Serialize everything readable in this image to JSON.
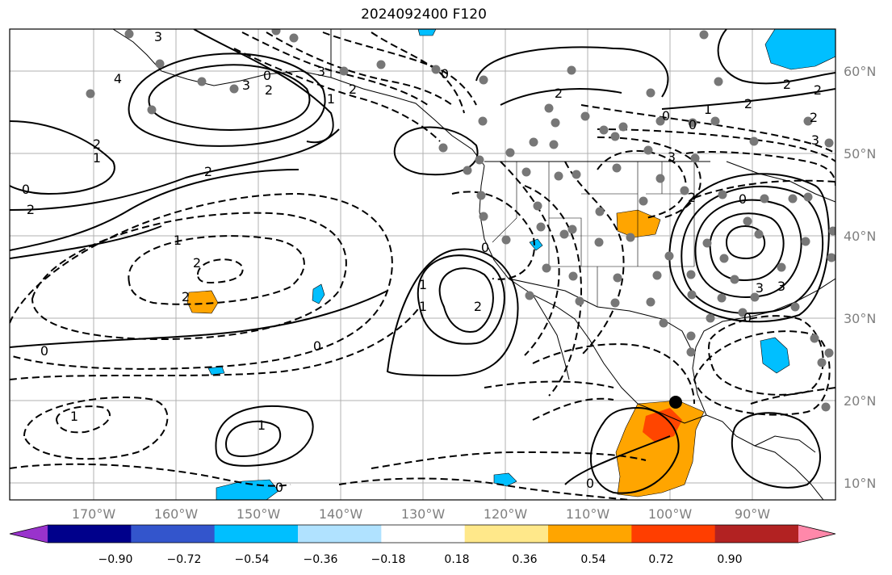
{
  "title": "2024092400 F120",
  "lat_labels": [
    "60°N",
    "50°N",
    "40°N",
    "30°N",
    "20°N",
    "10°N"
  ],
  "lon_labels": [
    "170°W",
    "160°W",
    "150°W",
    "140°W",
    "130°W",
    "120°W",
    "110°W",
    "100°W",
    "90°W"
  ],
  "colorbar": {
    "tick_labels": [
      "−0.90",
      "−0.72",
      "−0.54",
      "−0.36",
      "−0.18",
      "0.18",
      "0.36",
      "0.54",
      "0.72",
      "0.90"
    ],
    "colors": [
      "#9933cc",
      "#00008b",
      "#3355cc",
      "#00bfff",
      "#b0e2ff",
      "#ffffff",
      "#ffe88a",
      "#ffa500",
      "#ff3e00",
      "#b22222",
      "#ff88aa"
    ]
  },
  "contour_labels": [
    "3",
    "4",
    "3",
    "2",
    "0",
    "3",
    "1",
    "2",
    "0",
    "2",
    "1",
    "2",
    "0",
    "2",
    "2",
    "0",
    "1",
    "2",
    "2",
    "2",
    "2",
    "0",
    "1",
    "2",
    "3",
    "3",
    "2",
    "0",
    "1",
    "1",
    "0",
    "2",
    "3",
    "3",
    "2",
    "0",
    "1",
    "0",
    "0",
    "1",
    "0",
    "0"
  ],
  "fill_colors": {
    "orange": "#ffa500",
    "red": "#ff4500",
    "blue": "#00bfff"
  }
}
